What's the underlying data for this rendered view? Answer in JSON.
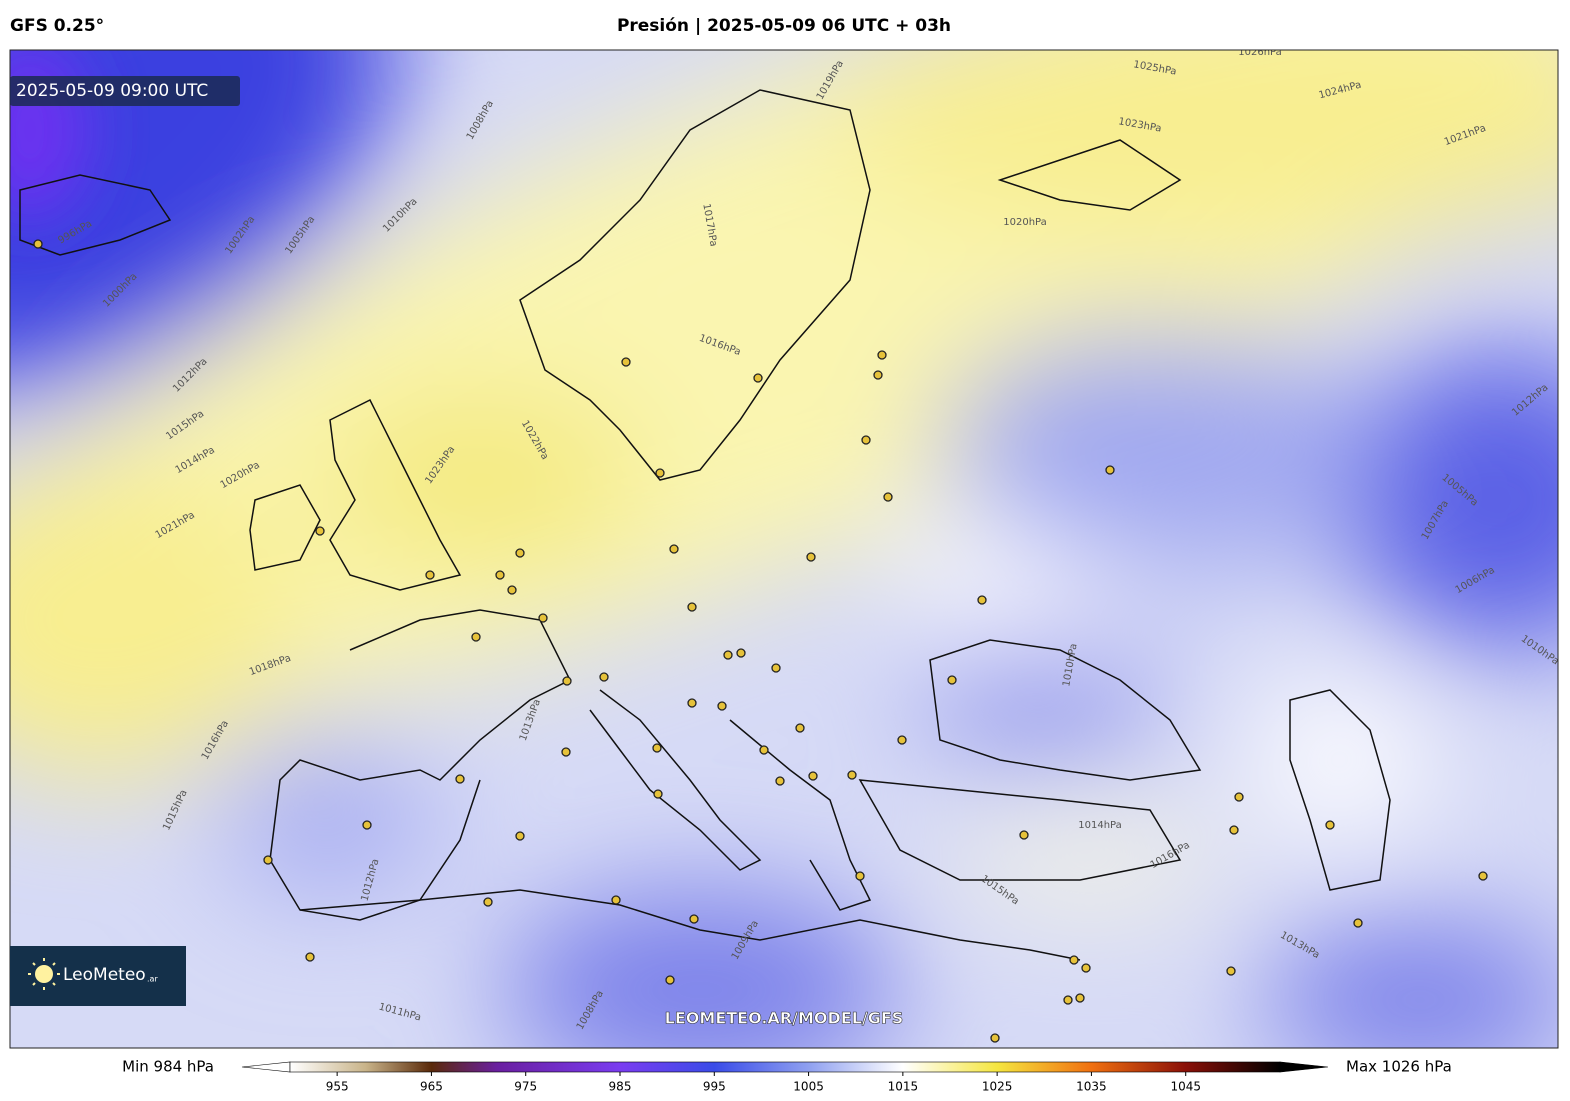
{
  "header": {
    "model": "GFS 0.25°",
    "title": "Presión | 2025-05-09 06 UTC + 03h"
  },
  "map": {
    "valid_time": "2025-05-09 09:00 UTC",
    "brand": "LeoMeteo",
    "brand_suffix": ".ar",
    "watermark": "LEOMETEO.AR/MODEL/GFS",
    "contour_labels": [
      "1026hPa",
      "1025hPa",
      "1024hPa",
      "1023hPa",
      "1021hPa",
      "1020hPa",
      "1019hPa",
      "1017hPa",
      "1016hPa",
      "1022hPa",
      "1023hPa",
      "1020hPa",
      "1021hPa",
      "1015hPa",
      "1014hPa",
      "1012hPa",
      "1010hPa",
      "1008hPa",
      "1005hPa",
      "1002hPa",
      "1000hPa",
      "996hPa",
      "1018hPa",
      "1016hPa",
      "1015hPa",
      "1013hPa",
      "1012hPa",
      "1010hPa",
      "1009hPa",
      "1011hPa",
      "1014hPa",
      "1016hPa",
      "1015hPa",
      "1013hPa",
      "1010hPa",
      "1007hPa",
      "1006hPa",
      "1005hPa",
      "1008hPa",
      "1012hPa"
    ]
  },
  "colorbar": {
    "min_label": "Min 984 hPa",
    "max_label": "Max 1026 hPa",
    "range": [
      950,
      1055
    ],
    "ticks": [
      955,
      965,
      975,
      985,
      995,
      1005,
      1015,
      1025,
      1035,
      1045
    ],
    "color_stops": [
      {
        "value": 950,
        "color": "#ffffff"
      },
      {
        "value": 958,
        "color": "#c9b48a"
      },
      {
        "value": 965,
        "color": "#5a2a0a"
      },
      {
        "value": 972,
        "color": "#6a1fa0"
      },
      {
        "value": 985,
        "color": "#7a3cf0"
      },
      {
        "value": 995,
        "color": "#3a4ce8"
      },
      {
        "value": 1005,
        "color": "#8fa0f0"
      },
      {
        "value": 1015,
        "color": "#ffffff"
      },
      {
        "value": 1025,
        "color": "#f5e640"
      },
      {
        "value": 1035,
        "color": "#f07010"
      },
      {
        "value": 1045,
        "color": "#8a1008"
      },
      {
        "value": 1055,
        "color": "#000000"
      }
    ]
  }
}
